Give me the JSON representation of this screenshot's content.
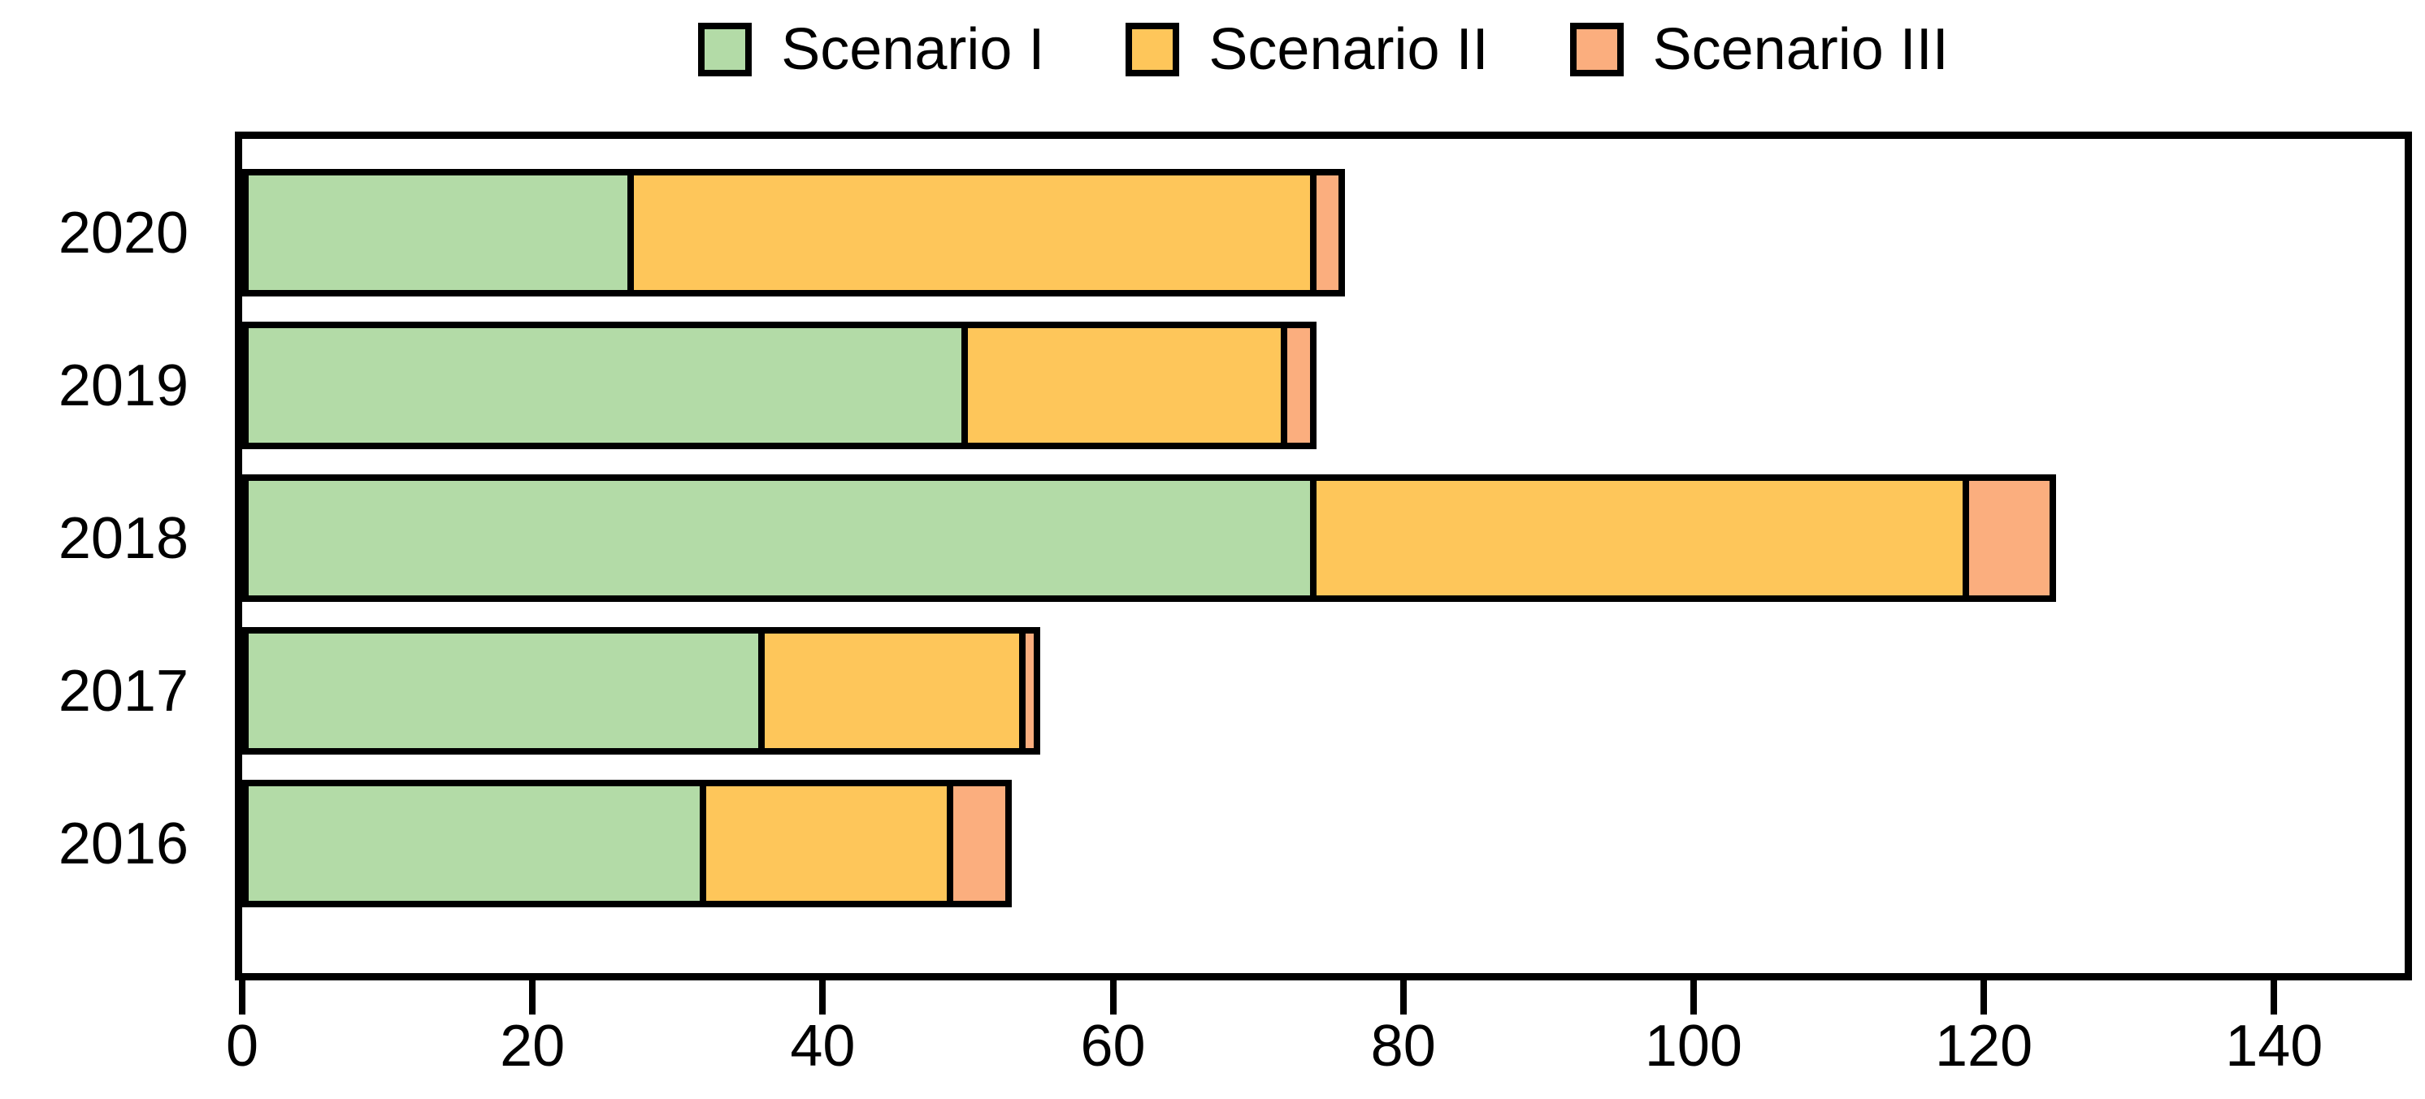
{
  "chart_data": {
    "type": "bar",
    "orientation": "horizontal",
    "stacked": true,
    "title": "",
    "xlabel": "",
    "ylabel": "",
    "categories": [
      "2020",
      "2019",
      "2018",
      "2017",
      "2016"
    ],
    "series": [
      {
        "name": "Scenario I",
        "color": "#b3dba7",
        "values": [
          27,
          50,
          74,
          36,
          32
        ]
      },
      {
        "name": "Scenario II",
        "color": "#fec65a",
        "values": [
          47,
          22,
          45,
          18,
          17
        ]
      },
      {
        "name": "Scenario III",
        "color": "#fbae7e",
        "values": [
          2,
          2,
          6,
          1,
          4
        ]
      }
    ],
    "totals": [
      76,
      74,
      125,
      55,
      53
    ],
    "x_ticks": [
      0,
      20,
      40,
      60,
      80,
      100,
      120,
      140
    ],
    "xlim": [
      0,
      149
    ],
    "grid": false,
    "legend_position": "top",
    "bar_border_color": "#000000",
    "background_color": "#ffffff"
  }
}
